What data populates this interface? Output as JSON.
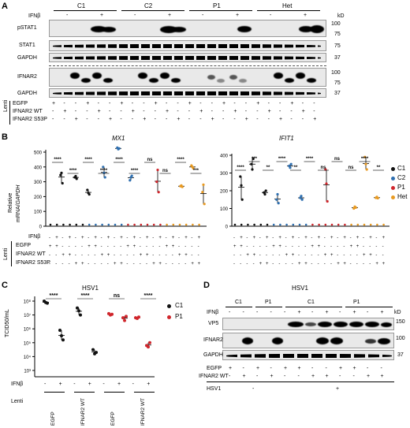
{
  "panels": {
    "A": {
      "letter": "A",
      "groups": [
        "C1",
        "C2",
        "P1",
        "Het"
      ],
      "ifnb_label": "IFNβ",
      "ifnb_signs": [
        "-",
        "+",
        "-",
        "+",
        "-",
        "+",
        "-",
        "+"
      ],
      "kd_label": "kD",
      "rows": [
        {
          "label": "pSTAT1",
          "markers": [
            "100",
            "75"
          ]
        },
        {
          "label": "STAT1",
          "markers": [
            "75"
          ]
        },
        {
          "label": "GAPDH",
          "markers": [
            "37"
          ]
        },
        {
          "label": "IFNAR2",
          "markers": [
            "100",
            "75"
          ]
        },
        {
          "label": "GAPDH",
          "markers": [
            "37"
          ]
        }
      ],
      "lenti_label": "Lenti",
      "lenti_rows": [
        {
          "label": "EGFP",
          "signs": [
            "+",
            "-",
            "-",
            "+",
            "-",
            "-",
            "+",
            "-",
            "-",
            "+",
            "-",
            "-",
            "+",
            "-",
            "-",
            "+",
            "-",
            "-",
            "+",
            "-",
            "-",
            "+",
            "-",
            "-"
          ]
        },
        {
          "label": "IFNAR2 WT",
          "signs": [
            "-",
            "+",
            "-",
            "-",
            "+",
            "-",
            "-",
            "+",
            "-",
            "-",
            "+",
            "-",
            "-",
            "+",
            "-",
            "-",
            "+",
            "-",
            "-",
            "+",
            "-",
            "-",
            "+",
            "-"
          ]
        },
        {
          "label": "IFNAR2 S53P",
          "signs": [
            "-",
            "-",
            "+",
            "-",
            "-",
            "+",
            "-",
            "-",
            "+",
            "-",
            "-",
            "+",
            "-",
            "-",
            "+",
            "-",
            "-",
            "+",
            "-",
            "-",
            "+",
            "-",
            "-",
            "+"
          ]
        }
      ]
    },
    "B": {
      "letter": "B",
      "gene1": "MX1",
      "gene2": "IFIT1",
      "ylabel_part1": "Relative",
      "ylabel_part2": "mRNA/",
      "ylabel_italic": "GAPDH",
      "yticks_left": [
        "500",
        "400",
        "300",
        "200",
        "100",
        "0"
      ],
      "yticks_right": [
        "400",
        "300",
        "200",
        "100",
        "0"
      ],
      "legend": [
        {
          "name": "C1",
          "color": "#111111"
        },
        {
          "name": "C2",
          "color": "#2e6fb0"
        },
        {
          "name": "P1",
          "color": "#d0262c"
        },
        {
          "name": "Het",
          "color": "#e89a22"
        }
      ],
      "sig_left": [
        "****",
        "****",
        "****",
        "****",
        "****",
        "****",
        "ns",
        "ns",
        "****",
        "***"
      ],
      "sig_left_top": [
        "****",
        "****",
        "****",
        "****",
        "****",
        "****",
        "ns",
        "ns",
        "****",
        "***"
      ],
      "sig_right": [
        "****",
        "***",
        "**",
        "****",
        "**",
        "****",
        "ns",
        "ns",
        "ns",
        "****",
        "**"
      ],
      "row_labels": [
        "IFNβ",
        "EGFP",
        "IFNAR2 WT",
        "IFNAR2 S53P"
      ],
      "lenti_label": "Lenti"
    },
    "C": {
      "letter": "C",
      "title": "HSV1",
      "ylabel": "TCID50/mL",
      "yticks": [
        "10⁸",
        "10⁷",
        "10⁶",
        "10⁵",
        "10⁴",
        "10³"
      ],
      "legend": [
        {
          "name": "C1",
          "color": "#111111"
        },
        {
          "name": "P1",
          "color": "#d0262c"
        }
      ],
      "sig": [
        "****",
        "****",
        "ns",
        "****"
      ],
      "ifnb_label": "IFNβ",
      "ifnb_signs": [
        "-",
        "+",
        "-",
        "+",
        "-",
        "+",
        "-",
        "+"
      ],
      "lenti_label": "Lenti",
      "lenti_groups": [
        "EGFP",
        "IFNAR2 WT",
        "EGFP",
        "IFNAR2 WT"
      ]
    },
    "D": {
      "letter": "D",
      "title": "HSV1",
      "groups": [
        "C1",
        "P1",
        "C1",
        "P1"
      ],
      "ifnb_label": "IFNβ",
      "ifnb_signs": [
        "-",
        "-",
        "-",
        "-",
        "-",
        "+",
        "-",
        "+",
        "-",
        "+",
        "-",
        "+"
      ],
      "kd_label": "kD",
      "rows": [
        {
          "label": "VP5",
          "markers": [
            "150"
          ]
        },
        {
          "label": "IFNAR2",
          "markers": [
            "100"
          ]
        },
        {
          "label": "GAPDH",
          "markers": [
            "37"
          ]
        }
      ],
      "egfp_label": "EGFP",
      "egfp_signs": [
        "+",
        "-",
        "+",
        "-",
        "+",
        "+",
        "-",
        "-",
        "+",
        "+",
        "-",
        "-"
      ],
      "wt_label": "IFNAR2 WT",
      "wt_signs": [
        "-",
        "+",
        "-",
        "+",
        "-",
        "-",
        "+",
        "+",
        "-",
        "-",
        "+",
        "+"
      ],
      "hsv_label": "HSV1",
      "hsv_signs": [
        "-",
        "+"
      ]
    }
  }
}
